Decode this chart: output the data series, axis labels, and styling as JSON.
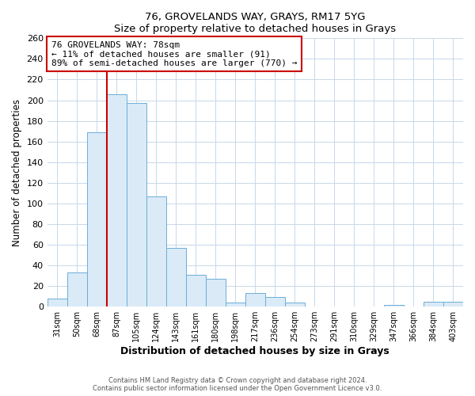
{
  "title": "76, GROVELANDS WAY, GRAYS, RM17 5YG",
  "subtitle": "Size of property relative to detached houses in Grays",
  "xlabel": "Distribution of detached houses by size in Grays",
  "ylabel": "Number of detached properties",
  "bar_labels": [
    "31sqm",
    "50sqm",
    "68sqm",
    "87sqm",
    "105sqm",
    "124sqm",
    "143sqm",
    "161sqm",
    "180sqm",
    "198sqm",
    "217sqm",
    "236sqm",
    "254sqm",
    "273sqm",
    "291sqm",
    "310sqm",
    "329sqm",
    "347sqm",
    "366sqm",
    "384sqm",
    "403sqm"
  ],
  "bar_values": [
    8,
    33,
    169,
    206,
    197,
    107,
    57,
    31,
    27,
    4,
    13,
    9,
    4,
    0,
    0,
    0,
    0,
    2,
    0,
    5,
    5
  ],
  "bar_color": "#daeaf7",
  "bar_edge_color": "#6baed6",
  "ylim": [
    0,
    260
  ],
  "yticks": [
    0,
    20,
    40,
    60,
    80,
    100,
    120,
    140,
    160,
    180,
    200,
    220,
    240,
    260
  ],
  "vline_color": "#cc0000",
  "annotation_title": "76 GROVELANDS WAY: 78sqm",
  "annotation_line1": "← 11% of detached houses are smaller (91)",
  "annotation_line2": "89% of semi-detached houses are larger (770) →",
  "footer1": "Contains HM Land Registry data © Crown copyright and database right 2024.",
  "footer2": "Contains public sector information licensed under the Open Government Licence v3.0.",
  "background_color": "#ffffff",
  "grid_color": "#c8d8e8"
}
